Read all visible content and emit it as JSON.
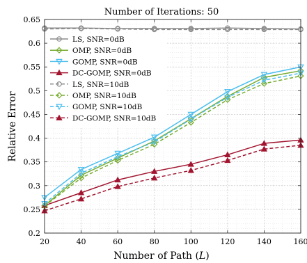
{
  "chart_data": {
    "type": "line",
    "title": "Number of Iterations: 50",
    "xlabel": "Number of Path (",
    "xlabel_var": "L",
    "xlabel_close": ")",
    "ylabel": "Relative Error",
    "x": [
      20,
      40,
      60,
      80,
      100,
      120,
      140,
      160
    ],
    "x_ticks": [
      "20",
      "40",
      "60",
      "80",
      "100",
      "120",
      "140",
      "160"
    ],
    "y_ticks": [
      "0.2",
      "0.25",
      "0.3",
      "0.35",
      "0.4",
      "0.45",
      "0.5",
      "0.55",
      "0.6",
      "0.65"
    ],
    "xlim": [
      20,
      160
    ],
    "ylim": [
      0.2,
      0.65
    ],
    "grid": true,
    "minor_grid": true,
    "legend_position": "top-left",
    "series": [
      {
        "name": "LS, SNR=0dB",
        "color": "#8c8c8c",
        "dash": "solid",
        "marker": "circle",
        "values": [
          0.632,
          0.632,
          0.631,
          0.631,
          0.631,
          0.632,
          0.631,
          0.63
        ]
      },
      {
        "name": "OMP, SNR=0dB",
        "color": "#77ac30",
        "dash": "solid",
        "marker": "diamond",
        "values": [
          0.258,
          0.322,
          0.358,
          0.394,
          0.441,
          0.488,
          0.528,
          0.542
        ]
      },
      {
        "name": "GOMP, SNR=0dB",
        "color": "#4dbeee",
        "dash": "solid",
        "marker": "triangle-down",
        "values": [
          0.275,
          0.334,
          0.368,
          0.402,
          0.45,
          0.498,
          0.534,
          0.55
        ]
      },
      {
        "name": "DC-GOMP, SNR=0dB",
        "color": "#a2142f",
        "dash": "solid",
        "marker": "triangle-up",
        "values": [
          0.258,
          0.285,
          0.312,
          0.33,
          0.345,
          0.365,
          0.389,
          0.396
        ]
      },
      {
        "name": "LS, SNR=10dB",
        "color": "#8c8c8c",
        "dash": "dashed",
        "marker": "circle",
        "values": [
          0.63,
          0.631,
          0.63,
          0.629,
          0.629,
          0.629,
          0.629,
          0.629
        ]
      },
      {
        "name": "OMP, SNR=10dB",
        "color": "#77ac30",
        "dash": "dashed",
        "marker": "diamond",
        "values": [
          0.257,
          0.316,
          0.353,
          0.387,
          0.433,
          0.481,
          0.515,
          0.531
        ]
      },
      {
        "name": "GOMP, SNR=10dB",
        "color": "#4dbeee",
        "dash": "dashed",
        "marker": "triangle-down",
        "values": [
          0.262,
          0.326,
          0.361,
          0.392,
          0.44,
          0.486,
          0.522,
          0.537
        ]
      },
      {
        "name": "DC-GOMP, SNR=10dB",
        "color": "#a2142f",
        "dash": "dashed",
        "marker": "triangle-up",
        "values": [
          0.247,
          0.272,
          0.298,
          0.316,
          0.332,
          0.353,
          0.377,
          0.385
        ]
      }
    ]
  }
}
